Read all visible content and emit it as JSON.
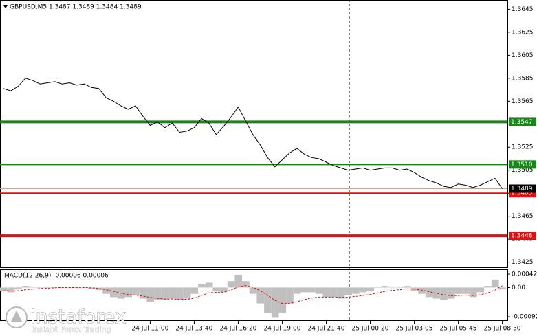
{
  "chart_data": [
    {
      "type": "line",
      "title": "GBPUSD,M5  1.3487 1.3489 1.3484 1.3489",
      "color": "#000000",
      "categories": [
        null,
        null,
        null,
        null,
        null,
        null,
        null,
        null,
        null,
        null,
        null,
        null,
        null,
        null,
        null,
        null,
        null,
        null,
        null,
        null,
        "24 Jul 11:00",
        null,
        null,
        null,
        null,
        null,
        "24 Jul 13:40",
        null,
        null,
        null,
        null,
        null,
        "24 Jul 16:20",
        null,
        null,
        null,
        null,
        null,
        "24 Jul 19:00",
        null,
        null,
        null,
        null,
        null,
        "24 Jul 21:40",
        null,
        null,
        null,
        null,
        null,
        "25 Jul 00:20",
        null,
        null,
        null,
        null,
        null,
        "25 Jul 03:05",
        null,
        null,
        null,
        null,
        null,
        "25 Jul 05:45",
        null,
        null,
        null,
        null,
        null,
        "25 Jul 08:30"
      ],
      "values": [
        1.3576,
        1.3574,
        1.3578,
        1.3585,
        1.3583,
        1.358,
        1.3581,
        1.3582,
        1.358,
        1.3581,
        1.3579,
        1.358,
        1.3577,
        1.3576,
        1.3568,
        1.3565,
        1.3561,
        1.3558,
        1.3561,
        1.3552,
        1.3544,
        1.3547,
        1.3542,
        1.3546,
        1.3538,
        1.3539,
        1.3542,
        1.355,
        1.3546,
        1.3536,
        1.3543,
        1.3551,
        1.356,
        1.3548,
        1.3536,
        1.3527,
        1.3516,
        1.3508,
        1.3514,
        1.352,
        1.3524,
        1.3519,
        1.3516,
        1.3515,
        1.3512,
        1.3509,
        1.3507,
        1.3505,
        1.3506,
        1.3507,
        1.3505,
        1.3506,
        1.3507,
        1.3507,
        1.3505,
        1.3506,
        1.3503,
        1.3499,
        1.3496,
        1.3494,
        1.3491,
        1.349,
        1.3493,
        1.3492,
        1.349,
        1.3492,
        1.3495,
        1.3498,
        1.3489
      ],
      "ylim": [
        1.342,
        1.3653
      ],
      "yticks": [
        1.3645,
        1.3625,
        1.3605,
        1.3585,
        1.3565,
        1.3545,
        1.3525,
        1.3505,
        1.3485,
        1.3465,
        1.3445,
        1.3425
      ],
      "levels": [
        {
          "value": 1.3547,
          "color": "#138a13",
          "width": 4
        },
        {
          "value": {
            "value": 1.351,
            "label": "1.3510"
          },
          "color": "#138a13",
          "width": 2
        },
        {
          "value": 1.3485,
          "color": "#e01010",
          "width": 2
        },
        {
          "value": 1.3448,
          "color": "#e01010",
          "width": 4
        }
      ],
      "current": 1.3489,
      "watermark": "instaforex",
      "watermark_subtitle": "Instant Forex Trading"
    },
    {
      "type": "macd",
      "title": "MACD(12,26,9) -0.00006 0.00006",
      "histogram": {
        "color": "#c0c0c0",
        "values": [
          -0.0001,
          -0.00015,
          -5e-05,
          5e-05,
          3e-05,
          0,
          2e-05,
          3e-05,
          1e-05,
          2e-05,
          0,
          0,
          -5e-05,
          -8e-05,
          -0.0002,
          -0.0003,
          -0.00035,
          -0.0003,
          -0.00025,
          -0.00035,
          -0.00045,
          -0.0004,
          -0.0004,
          -0.00035,
          -0.0004,
          -0.00035,
          -0.0002,
          0.0001,
          0.00015,
          -0.0001,
          -0.00015,
          0.0002,
          0.0004,
          0.0002,
          -0.0002,
          -0.0005,
          -0.0008,
          -0.00095,
          -0.0008,
          -0.0005,
          -0.0002,
          -0.00015,
          -0.00015,
          -0.0002,
          -0.0003,
          -0.0003,
          -0.00035,
          -0.00025,
          -0.0002,
          -0.00015,
          -0.0001,
          0,
          5e-05,
          3e-05,
          0,
          5e-05,
          -0.0001,
          -0.0002,
          -0.0003,
          -0.00035,
          -0.0004,
          -0.00035,
          -0.0002,
          -0.0002,
          -0.0003,
          -0.00015,
          5e-05,
          0.00025,
          -6e-05
        ]
      },
      "signal": {
        "color": "#e01010",
        "values": [
          -0.0001,
          -0.00011,
          -0.0001,
          -7e-05,
          -5e-05,
          -3e-05,
          -2e-05,
          -1e-05,
          0,
          0,
          0,
          0,
          -1e-05,
          -3e-05,
          -7e-05,
          -0.00012,
          -0.00018,
          -0.00022,
          -0.00024,
          -0.00027,
          -0.00031,
          -0.00034,
          -0.00036,
          -0.00036,
          -0.00037,
          -0.00037,
          -0.00034,
          -0.00025,
          -0.00017,
          -0.00015,
          -0.00015,
          -8e-05,
          2e-05,
          6e-05,
          1e-05,
          -0.0001,
          -0.00025,
          -0.0004,
          -0.0005,
          -0.0005,
          -0.00045,
          -0.00038,
          -0.00033,
          -0.0003,
          -0.0003,
          -0.0003,
          -0.00031,
          -0.0003,
          -0.00028,
          -0.00025,
          -0.00022,
          -0.00017,
          -0.00012,
          -9e-05,
          -7e-05,
          -4e-05,
          -5e-05,
          -8e-05,
          -0.00013,
          -0.00018,
          -0.00023,
          -0.00026,
          -0.00025,
          -0.00024,
          -0.00025,
          -0.00023,
          -0.00017,
          -8e-05,
          6e-05
        ]
      },
      "ylim": [
        -0.00105,
        0.00055
      ],
      "yticks": [
        0.00042,
        {
          "value": 0,
          "label": "0.00"
        },
        -0.00092
      ]
    }
  ]
}
